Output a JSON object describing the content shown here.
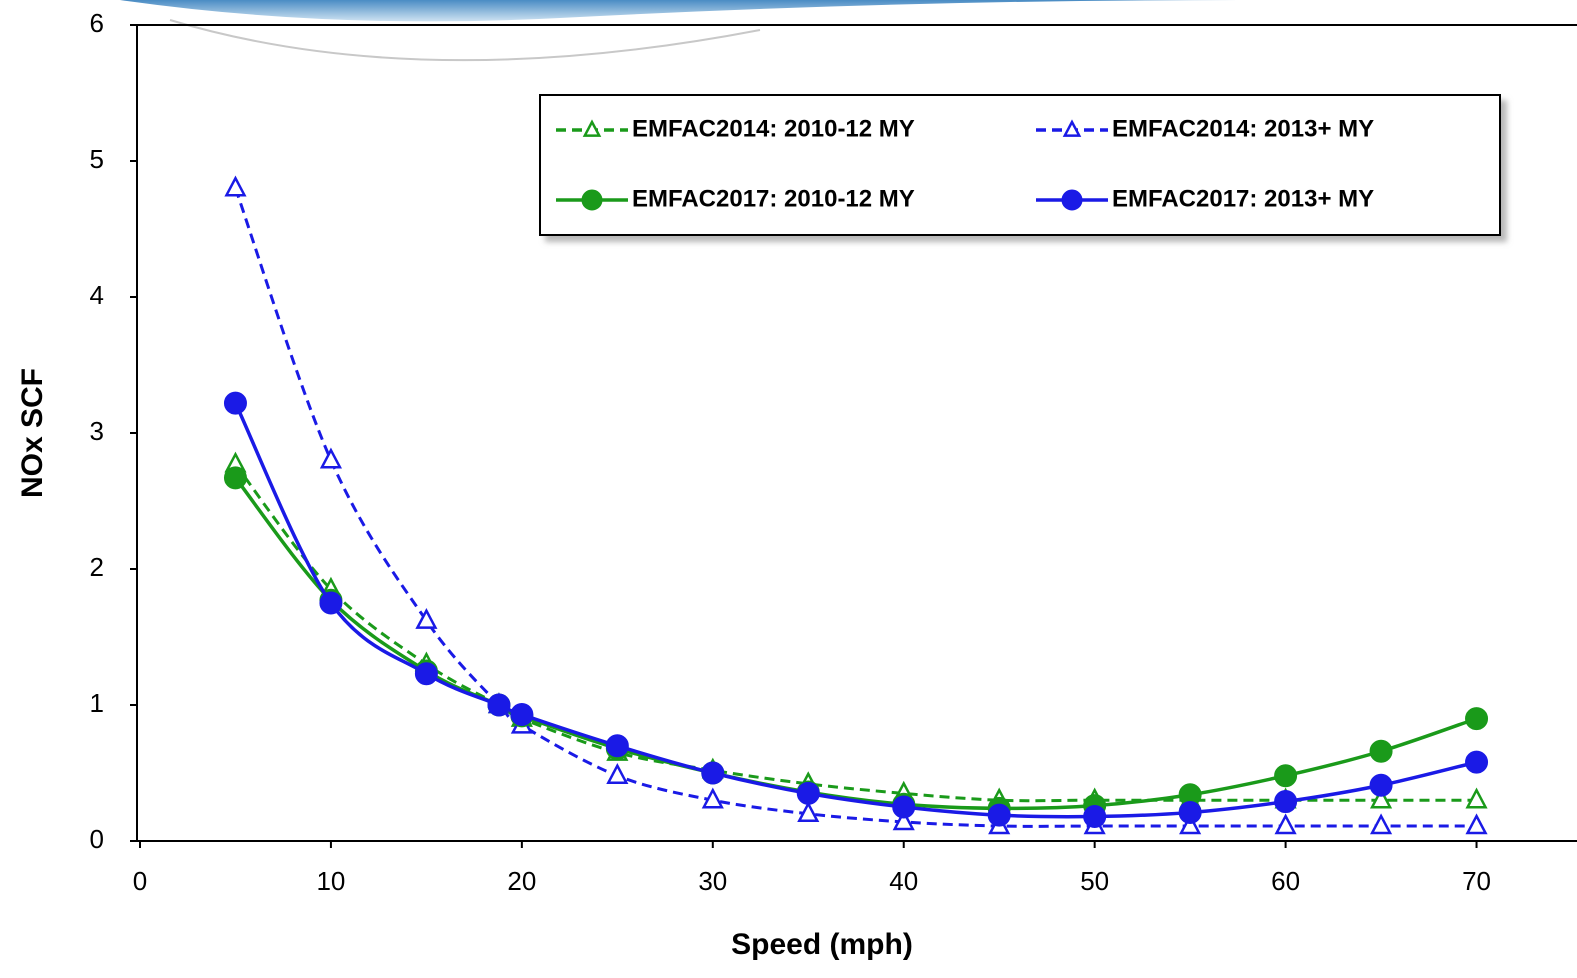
{
  "chart_data": {
    "type": "line",
    "x_label": "Speed (mph)",
    "y_label": "NOx SCF",
    "x": [
      5,
      10,
      15,
      18.8,
      20,
      25,
      30,
      35,
      40,
      45,
      50,
      55,
      60,
      65,
      70
    ],
    "series": [
      {
        "name": "EMFAC2014: 2010-12 MY",
        "color": "#1a9a1a",
        "dashed": true,
        "marker": "triangle",
        "values": [
          2.77,
          1.85,
          1.3,
          1.0,
          0.9,
          0.65,
          0.52,
          0.42,
          0.35,
          0.3,
          0.3,
          0.3,
          0.3,
          0.3,
          0.3
        ]
      },
      {
        "name": "EMFAC2014: 2013+ MY",
        "color": "#1a1ae6",
        "dashed": true,
        "marker": "triangle",
        "values": [
          4.8,
          2.8,
          1.62,
          1.0,
          0.85,
          0.48,
          0.3,
          0.2,
          0.14,
          0.11,
          0.11,
          0.11,
          0.11,
          0.11,
          0.11
        ]
      },
      {
        "name": "EMFAC2017: 2010-12 MY",
        "color": "#1a9a1a",
        "dashed": false,
        "marker": "circle",
        "values": [
          2.67,
          1.77,
          1.25,
          1.0,
          0.92,
          0.68,
          0.5,
          0.36,
          0.27,
          0.24,
          0.26,
          0.34,
          0.48,
          0.66,
          0.9
        ]
      },
      {
        "name": "EMFAC2017: 2013+ MY",
        "color": "#1a1ae6",
        "dashed": false,
        "marker": "circle",
        "values": [
          3.22,
          1.75,
          1.23,
          1.0,
          0.93,
          0.7,
          0.5,
          0.35,
          0.25,
          0.19,
          0.18,
          0.21,
          0.29,
          0.41,
          0.58
        ]
      }
    ],
    "xlim": [
      0,
      75
    ],
    "ylim": [
      0,
      6
    ],
    "xticks": [
      0,
      10,
      20,
      30,
      40,
      50,
      60,
      70
    ],
    "yticks": [
      0,
      1,
      2,
      3,
      4,
      5,
      6
    ],
    "grid": false,
    "legend_position": "top-right"
  }
}
